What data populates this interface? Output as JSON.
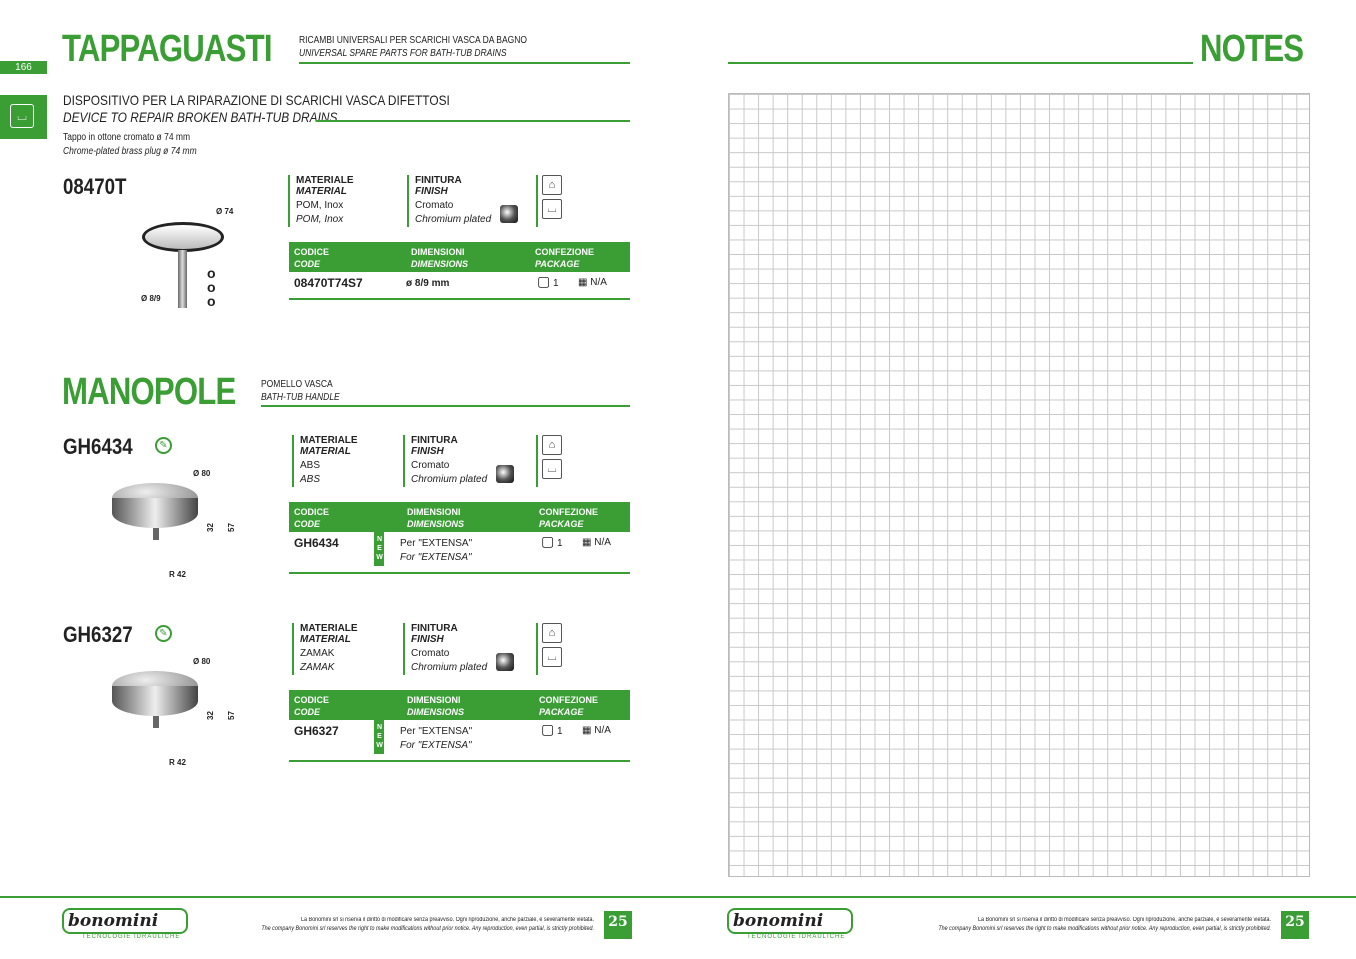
{
  "page_number": "166",
  "left": {
    "section1": {
      "title": "TAPPAGUASTI",
      "sub_it": "RICAMBI UNIVERSALI PER SCARICHI VASCA DA BAGNO",
      "sub_en": "UNIVERSAL SPARE PARTS FOR BATH-TUB DRAINS"
    },
    "device": {
      "title_it": "DISPOSITIVO PER LA RIPARAZIONE DI SCARICHI VASCA DIFETTOSI",
      "title_en": "DEVICE TO REPAIR BROKEN BATH-TUB DRAINS",
      "desc_it": "Tappo in ottone cromato ø 74 mm",
      "desc_en": "Chrome-plated brass plug ø 74 mm"
    },
    "section2": {
      "title": "MANOPOLE",
      "sub_it": "POMELLO VASCA",
      "sub_en": "BATH-TUB HANDLE"
    },
    "labels": {
      "material_it": "MATERIALE",
      "material_en": "MATERIAL",
      "finish_it": "FINITURA",
      "finish_en": "FINISH",
      "code_it": "CODICE",
      "code_en": "CODE",
      "dim_it": "DIMENSIONI",
      "dim_en": "DIMENSIONS",
      "pack_it": "CONFEZIONE",
      "pack_en": "PACKAGE",
      "new": "NEW"
    },
    "products": [
      {
        "code": "08470T",
        "material_it": "POM, Inox",
        "material_en": "POM, Inox",
        "finish_it": "Cromato",
        "finish_en": "Chromium plated",
        "row_code": "08470T74S7",
        "dim": "ø 8/9 mm",
        "dim_en": "",
        "qty": "1",
        "pallet": "N/A",
        "dims": [
          "Ø 74",
          "Ø 8/9"
        ]
      },
      {
        "code": "GH6434",
        "material_it": "ABS",
        "material_en": "ABS",
        "finish_it": "Cromato",
        "finish_en": "Chromium plated",
        "row_code": "GH6434",
        "dim": "Per \"EXTENSA\"",
        "dim_en": "For \"EXTENSA\"",
        "qty": "1",
        "pallet": "N/A",
        "dims": [
          "Ø 80",
          "32",
          "57",
          "R 42"
        ]
      },
      {
        "code": "GH6327",
        "material_it": "ZAMAK",
        "material_en": "ZAMAK",
        "finish_it": "Cromato",
        "finish_en": "Chromium plated",
        "row_code": "GH6327",
        "dim": "Per \"EXTENSA\"",
        "dim_en": "For \"EXTENSA\"",
        "qty": "1",
        "pallet": "N/A",
        "dims": [
          "Ø 80",
          "32",
          "57",
          "R 42"
        ]
      }
    ]
  },
  "right": {
    "title": "NOTES"
  },
  "footer": {
    "brand": "bonomini",
    "tagline": "TECNOLOGIE IDRAULICHE",
    "notice_it": "La Bonomini srl si riserva il diritto di modificare senza preavviso. Ogni riproduzione, anche parziale, è severamente vietata.",
    "notice_en": "The company Bonomini srl reserves the right to make modifications without prior notice. Any reproduction, even partial, is strictly prohibited.",
    "badge": "25"
  },
  "colors": {
    "accent": "#3a9e35"
  }
}
